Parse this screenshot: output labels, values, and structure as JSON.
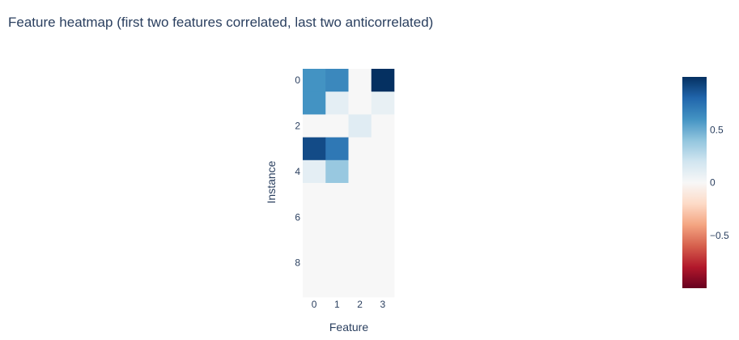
{
  "chart_data": {
    "type": "heatmap",
    "title": "Feature heatmap (first two features correlated, last two anticorrelated)",
    "xlabel": "Feature",
    "ylabel": "Instance",
    "x_categories": [
      0,
      1,
      2,
      3
    ],
    "y_categories": [
      0,
      1,
      2,
      3,
      4,
      5,
      6,
      7,
      8,
      9
    ],
    "x_tick_labels": [
      "0",
      "1",
      "2",
      "3"
    ],
    "y_tick_labels": [
      "0",
      "2",
      "4",
      "6",
      "8"
    ],
    "y_tick_values": [
      0,
      2,
      4,
      6,
      8
    ],
    "z": [
      [
        0.6,
        0.65,
        0.0,
        1.0
      ],
      [
        0.6,
        0.1,
        0.0,
        0.08
      ],
      [
        0.0,
        0.0,
        0.12,
        0.0
      ],
      [
        0.9,
        0.72,
        0.0,
        0.0
      ],
      [
        0.1,
        0.38,
        0.0,
        0.0
      ],
      [
        0.0,
        0.0,
        0.0,
        0.0
      ],
      [
        0.0,
        0.0,
        0.0,
        0.0
      ],
      [
        0.0,
        0.0,
        0.0,
        0.0
      ],
      [
        0.0,
        0.0,
        0.0,
        0.0
      ],
      [
        0.0,
        0.0,
        0.0,
        0.0
      ]
    ],
    "zlim": [
      -1,
      1
    ],
    "colorscale": "RdBu",
    "colorbar_ticks": [
      0.5,
      0,
      -0.5
    ],
    "colorbar_tick_labels": [
      "0.5",
      "0",
      "−0.5"
    ],
    "colorscale_stops": [
      "#67001f",
      "#b2182b",
      "#d6604d",
      "#f4a582",
      "#fddbc7",
      "#f7f7f7",
      "#d1e5f0",
      "#92c5de",
      "#4393c3",
      "#2166ac",
      "#053061"
    ]
  }
}
